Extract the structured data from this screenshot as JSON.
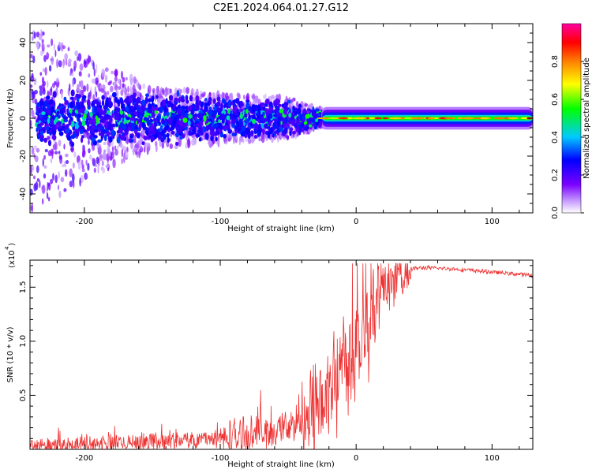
{
  "title": "C2E1.2024.064.01.27.G12",
  "chart_data": [
    {
      "type": "heatmap",
      "xlabel": "Height of straight line (km)",
      "ylabel": "Frequency (Hz)",
      "xlim": [
        -240,
        130
      ],
      "ylim": [
        -50,
        50
      ],
      "xticks": [
        "-200",
        "-100",
        "0",
        "100"
      ],
      "yticks": [
        "-40",
        "-20",
        "0",
        "20",
        "40"
      ],
      "colorbar": {
        "label": "Normalized spectral amplitude",
        "range": [
          0,
          1
        ],
        "ticks": [
          "0.0",
          "0.2",
          "0.4",
          "0.6",
          "0.8"
        ],
        "colors": [
          "#ffffff",
          "#7a00ff",
          "#0000ff",
          "#00c8ff",
          "#00ff00",
          "#ffff00",
          "#ff8000",
          "#ff0000",
          "#ff00a0"
        ]
      },
      "spectral_spread": {
        "x": [
          -240,
          -200,
          -150,
          -100,
          -50,
          -20,
          0,
          50,
          130
        ],
        "half_width_hz": [
          45,
          30,
          15,
          12,
          10,
          3,
          2,
          2,
          2
        ]
      }
    },
    {
      "type": "line",
      "xlabel": "Height of straight line (km)",
      "ylabel": "SNR (10 * v/v)",
      "y_multiplier": "(x10",
      "y_multiplier_exp": "4",
      "xlim": [
        -240,
        130
      ],
      "ylim": [
        0,
        1.75
      ],
      "xticks": [
        "-200",
        "-100",
        "0",
        "100"
      ],
      "yticks": [
        "0.5",
        "1.0",
        "1.5"
      ],
      "series": [
        {
          "color": "#ee3333",
          "x": [
            -240,
            -220,
            -200,
            -180,
            -160,
            -140,
            -120,
            -100,
            -80,
            -60,
            -40,
            -30,
            -20,
            -10,
            0,
            10,
            20,
            30,
            40,
            50,
            70,
            90,
            110,
            130
          ],
          "values": [
            0.02,
            0.03,
            0.04,
            0.06,
            0.07,
            0.08,
            0.09,
            0.1,
            0.13,
            0.17,
            0.25,
            0.35,
            0.55,
            0.8,
            1.0,
            1.25,
            1.45,
            1.6,
            1.67,
            1.68,
            1.67,
            1.65,
            1.63,
            1.61
          ]
        }
      ]
    }
  ]
}
